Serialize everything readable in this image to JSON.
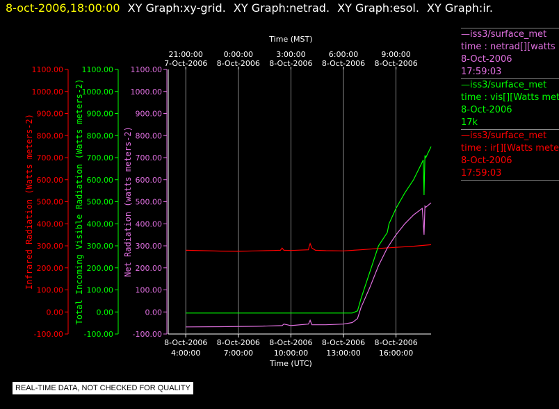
{
  "header": {
    "timestamp": "8-oct-2006,18:00:00",
    "graphs": [
      "XY Graph:xy-grid.",
      "XY Graph:netrad.",
      "XY Graph:esol.",
      "XY Graph:ir."
    ]
  },
  "legend": [
    {
      "lines": [
        "—iss3/surface_met",
        "time : netrad[][watts met",
        "8-Oct-2006",
        "17:59:03"
      ],
      "color": "#e070e0"
    },
    {
      "lines": [
        "—iss3/surface_met",
        "time : vis[][Watts meter",
        "8-Oct-2006",
        "17k"
      ],
      "color": "#00ff00"
    },
    {
      "lines": [
        "—iss3/surface_met",
        "time : ir[][Watts meters",
        "8-Oct-2006",
        "17:59:03"
      ],
      "color": "#ff0000"
    }
  ],
  "notice": "REAL-TIME DATA, NOT CHECKED FOR QUALITY",
  "chart_data": {
    "type": "line",
    "top_axis": {
      "label": "Time (MST)",
      "ticks": [
        {
          "h": 21,
          "time": "21:00:00",
          "date": "7-Oct-2006"
        },
        {
          "h": 24,
          "time": "0:00:00",
          "date": "8-Oct-2006"
        },
        {
          "h": 27,
          "time": "3:00:00",
          "date": "8-Oct-2006"
        },
        {
          "h": 30,
          "time": "6:00:00",
          "date": "8-Oct-2006"
        },
        {
          "h": 33,
          "time": "9:00:00",
          "date": "8-Oct-2006"
        }
      ]
    },
    "bottom_axis": {
      "label": "Time (UTC)",
      "ticks": [
        {
          "h": 4,
          "date": "8-Oct-2006",
          "time": "4:00:00"
        },
        {
          "h": 7,
          "date": "8-Oct-2006",
          "time": "7:00:00"
        },
        {
          "h": 10,
          "date": "8-Oct-2006",
          "time": "10:00:00"
        },
        {
          "h": 13,
          "date": "8-Oct-2006",
          "time": "13:00:00"
        },
        {
          "h": 16,
          "date": "8-Oct-2006",
          "time": "16:00:00"
        }
      ]
    },
    "xlim_utc_hours": [
      3,
      18
    ],
    "y_axes": [
      {
        "label": "Infrared Radiation (Watts meters-2)",
        "color": "#ff0000",
        "ylim": [
          -100,
          1100
        ]
      },
      {
        "label": "Total Incoming Visible Radiation (Watts meters-2)",
        "color": "#00ff00",
        "ylim": [
          -100,
          1100
        ]
      },
      {
        "label": "Net Radiation (watts meters-2)",
        "color": "#e070e0",
        "ylim": [
          -100,
          1100
        ]
      }
    ],
    "y_ticks": [
      -100,
      0,
      100,
      200,
      300,
      400,
      500,
      600,
      700,
      800,
      900,
      1000,
      1100
    ],
    "grid": true,
    "series": [
      {
        "name": "ir",
        "color": "#ff0000",
        "x": [
          4.0,
          5.0,
          6.0,
          7.0,
          8.0,
          9.0,
          9.4,
          9.5,
          9.6,
          10.0,
          11.0,
          11.05,
          11.1,
          11.2,
          11.4,
          12.0,
          13.0,
          14.0,
          15.0,
          16.0,
          17.0,
          18.0
        ],
        "y": [
          280,
          278,
          276,
          275,
          277,
          279,
          280,
          290,
          280,
          279,
          282,
          300,
          310,
          290,
          280,
          278,
          277,
          282,
          288,
          293,
          298,
          305
        ]
      },
      {
        "name": "vis",
        "color": "#00ff00",
        "x": [
          4.0,
          6.0,
          8.0,
          10.0,
          12.0,
          13.5,
          13.8,
          14.0,
          14.5,
          15.0,
          15.5,
          15.6,
          16.0,
          16.5,
          17.0,
          17.5,
          17.55,
          17.6,
          17.65,
          17.7,
          18.0
        ],
        "y": [
          -5,
          -5,
          -5,
          -5,
          -5,
          -5,
          5,
          60,
          180,
          300,
          360,
          400,
          470,
          540,
          600,
          680,
          690,
          530,
          710,
          700,
          750
        ]
      },
      {
        "name": "netrad",
        "color": "#e070e0",
        "x": [
          4.0,
          6.0,
          8.0,
          9.5,
          9.6,
          10.0,
          11.0,
          11.1,
          11.2,
          12.0,
          13.0,
          13.5,
          13.8,
          14.0,
          14.5,
          15.0,
          15.5,
          16.0,
          16.5,
          17.0,
          17.5,
          17.6,
          17.65,
          17.7,
          18.0
        ],
        "y": [
          -68,
          -67,
          -65,
          -62,
          -55,
          -62,
          -55,
          -38,
          -58,
          -58,
          -55,
          -48,
          -30,
          20,
          110,
          210,
          290,
          350,
          400,
          440,
          470,
          350,
          480,
          475,
          495
        ]
      }
    ]
  }
}
